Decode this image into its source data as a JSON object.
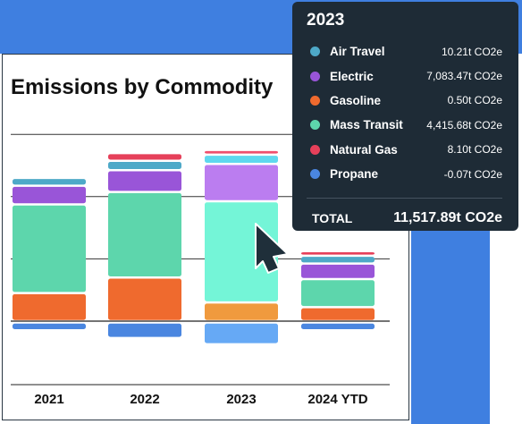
{
  "chart_data": {
    "type": "bar",
    "stacked": true,
    "title": "Emissions by Commodity",
    "xlabel": "",
    "ylabel": "",
    "categories": [
      "2021",
      "2022",
      "2023",
      "2024 YTD"
    ],
    "units": "t CO2e",
    "series": [
      {
        "name": "Propane",
        "color": "#4a86e0",
        "values": [
          -0.5,
          -1.0,
          -1.4,
          -0.5
        ]
      },
      {
        "name": "Gasoline",
        "color": "#ef6a2e",
        "values": [
          1.8,
          2.8,
          1.2,
          0.9
        ]
      },
      {
        "name": "Mass Transit",
        "color": "#5dd6ac",
        "values": [
          5.7,
          5.5,
          6.5,
          1.8
        ]
      },
      {
        "name": "Electric",
        "color": "#9955d8",
        "values": [
          1.2,
          1.4,
          2.4,
          1.0
        ]
      },
      {
        "name": "Air Travel",
        "color": "#4ea9c8",
        "values": [
          0.5,
          0.6,
          0.6,
          0.5
        ]
      },
      {
        "name": "Natural Gas",
        "color": "#e6405a",
        "values": [
          0.0,
          0.5,
          0.3,
          0.3
        ]
      }
    ],
    "ylim": [
      -3.8,
      12.4
    ],
    "gridlines": [
      0,
      4,
      8,
      12
    ],
    "grid": true,
    "legend": "none",
    "highlighted_category": "2023"
  },
  "tooltip": {
    "title": "2023",
    "rows": [
      {
        "name": "Air Travel",
        "value": "10.21t CO2e",
        "color": "#4ea9c8"
      },
      {
        "name": "Electric",
        "value": "7,083.47t CO2e",
        "color": "#9955d8"
      },
      {
        "name": "Gasoline",
        "value": "0.50t CO2e",
        "color": "#ef6a2e"
      },
      {
        "name": "Mass Transit",
        "value": "4,415.68t CO2e",
        "color": "#5dd6ac"
      },
      {
        "name": "Natural Gas",
        "value": "8.10t CO2e",
        "color": "#e6405a"
      },
      {
        "name": "Propane",
        "value": "-0.07t CO2e",
        "color": "#4a86e0"
      }
    ],
    "total_label": "TOTAL",
    "total_value": "11,517.89t CO2e"
  },
  "colors": {
    "accent": "#3f7fe0",
    "tooltip_bg": "#1e2b36",
    "highlight_colors": {
      "Propane": "#66a9f5",
      "Gasoline": "#f09a3e",
      "Mass Transit": "#74f5d7",
      "Electric": "#bb7df0",
      "Air Travel": "#5ed8ee",
      "Natural Gas": "#f0506e"
    }
  },
  "icons": {
    "cursor": "mouse-pointer-icon"
  }
}
